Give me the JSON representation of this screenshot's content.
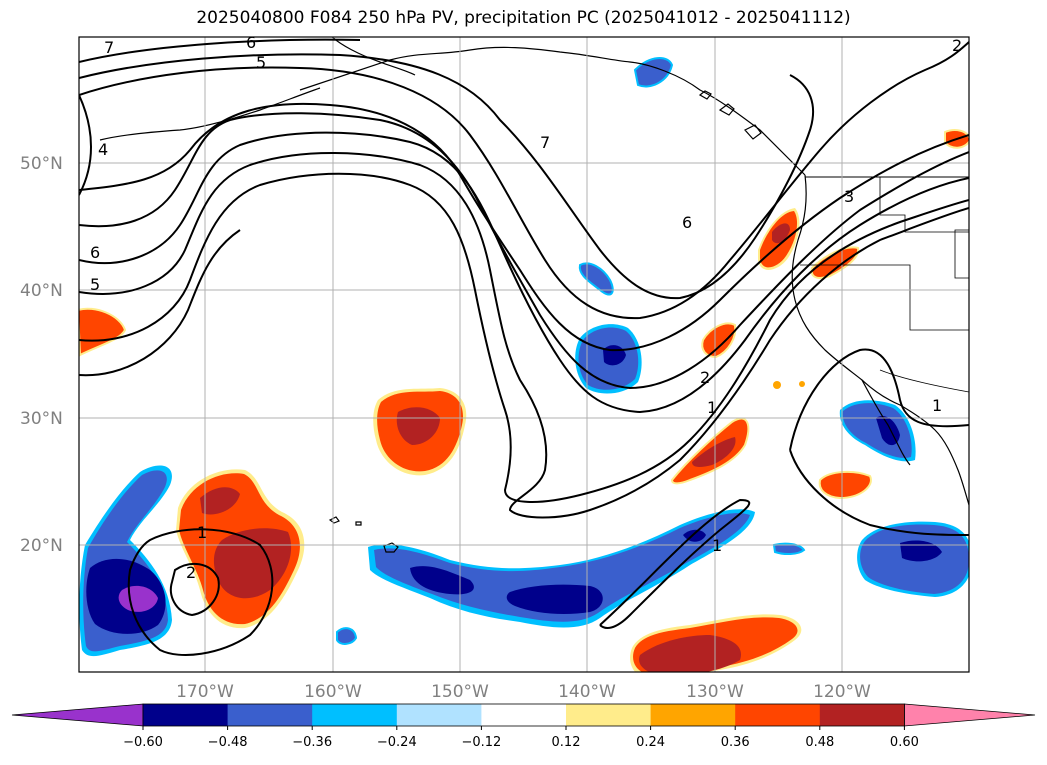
{
  "title": "2025040800 F084 250 hPa PV, precipitation PC (2025041012 - 2025041112)",
  "lat_labels": [
    "50°N",
    "40°N",
    "30°N",
    "20°N"
  ],
  "lon_labels": [
    "170°W",
    "160°W",
    "150°W",
    "140°W",
    "130°W",
    "120°W"
  ],
  "colorbar": {
    "ticks": [
      "−0.60",
      "−0.48",
      "−0.36",
      "−0.24",
      "−0.12",
      "0.12",
      "0.24",
      "0.36",
      "0.48",
      "0.60"
    ],
    "colors": [
      "#9932CC",
      "#00008B",
      "#3A5FCD",
      "#00BFFF",
      "#B0E2FF",
      "#FFFFFF",
      "#FFEC8B",
      "#FFA500",
      "#FF4500",
      "#B22222",
      "#FF82AB"
    ]
  },
  "contour_labels": [
    "7",
    "6",
    "5",
    "4",
    "6",
    "5",
    "7",
    "6",
    "3",
    "2",
    "1",
    "1",
    "1",
    "2",
    "1",
    "2"
  ],
  "colors": {
    "neg_light": "#00BFFF",
    "neg_mid": "#3A5FCD",
    "neg_dark": "#00008B",
    "neg_min": "#9932CC",
    "pos_light": "#FFEC8B",
    "pos_mid": "#FF4500",
    "pos_dark": "#B22222",
    "grid": "#b0b0b0",
    "contour": "#000000"
  }
}
